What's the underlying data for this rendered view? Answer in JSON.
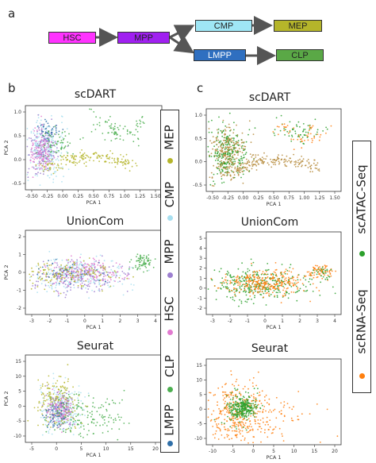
{
  "panel_labels": {
    "a": "a",
    "b": "b",
    "c": "c"
  },
  "flow": {
    "nodes": [
      {
        "id": "hsc",
        "label": "HSC",
        "color": "#ff33ff"
      },
      {
        "id": "mpp",
        "label": "MPP",
        "color": "#a020f0"
      },
      {
        "id": "cmp",
        "label": "CMP",
        "color": "#9fe6f5"
      },
      {
        "id": "mep",
        "label": "MEP",
        "color": "#b5b52a"
      },
      {
        "id": "lmpp",
        "label": "LMPP",
        "color": "#2f6fc0"
      },
      {
        "id": "clp",
        "label": "CLP",
        "color": "#5aa846"
      }
    ]
  },
  "plots": {
    "b_scdart": {
      "title": "scDART",
      "xlabel": "PCA 1",
      "ylabel": "PCA 2",
      "xticks": [
        "-0.50",
        "-0.25",
        "0.00",
        "0.25",
        "0.50",
        "0.75",
        "1.00",
        "1.25",
        "1.50"
      ],
      "yticks": [
        "1.0",
        "0.5",
        "0.0",
        "-0.5"
      ]
    },
    "b_unioncom": {
      "title": "UnionCom",
      "xlabel": "PCA 1",
      "ylabel": "PCA 2",
      "xticks": [
        "-3",
        "-2",
        "-1",
        "0",
        "1",
        "2",
        "3",
        "4"
      ],
      "yticks": [
        "2",
        "1",
        "0",
        "-1",
        "-2"
      ]
    },
    "b_seurat": {
      "title": "Seurat",
      "xlabel": "PCA 1",
      "ylabel": "PCA 2",
      "xticks": [
        "-5",
        "0",
        "5",
        "10",
        "15",
        "20"
      ],
      "yticks": [
        "15",
        "10",
        "5",
        "0",
        "-5",
        "-10"
      ]
    },
    "c_scdart": {
      "title": "scDART",
      "xlabel": "PCA 1",
      "ylabel": "PCA 2",
      "xticks": [
        "-0.50",
        "-0.25",
        "0.00",
        "0.25",
        "0.50",
        "0.75",
        "1.00",
        "1.25",
        "1.50"
      ],
      "yticks": [
        "1.0",
        "0.5",
        "0.0",
        "-0.5"
      ]
    },
    "c_unioncom": {
      "title": "UnionCom",
      "xlabel": "PCA 1",
      "ylabel": "PCA 2",
      "xticks": [
        "-3",
        "-2",
        "-1",
        "0",
        "1",
        "2",
        "3",
        "4"
      ],
      "yticks": [
        "5",
        "4",
        "3",
        "2",
        "1",
        "0",
        "-1",
        "-2"
      ]
    },
    "c_seurat": {
      "title": "Seurat",
      "xlabel": "PCA 1",
      "ylabel": "PCA 2",
      "xticks": [
        "-10",
        "-5",
        "0",
        "5",
        "10",
        "15",
        "20"
      ],
      "yticks": [
        "15",
        "10",
        "5",
        "0",
        "-5",
        "-10"
      ]
    }
  },
  "legend_celltype": [
    {
      "label": "MEP",
      "color": "#b5b52a"
    },
    {
      "label": "CMP",
      "color": "#a8dff0"
    },
    {
      "label": "MPP",
      "color": "#9d7fd0"
    },
    {
      "label": "HSC",
      "color": "#e27ad0"
    },
    {
      "label": "CLP",
      "color": "#4caf50"
    },
    {
      "label": "LMPP",
      "color": "#2f6fa8"
    }
  ],
  "legend_modality": [
    {
      "label": "scATAC-Seq",
      "color": "#2ca02c"
    },
    {
      "label": "scRNA-Seq",
      "color": "#ff7f0e"
    }
  ]
}
